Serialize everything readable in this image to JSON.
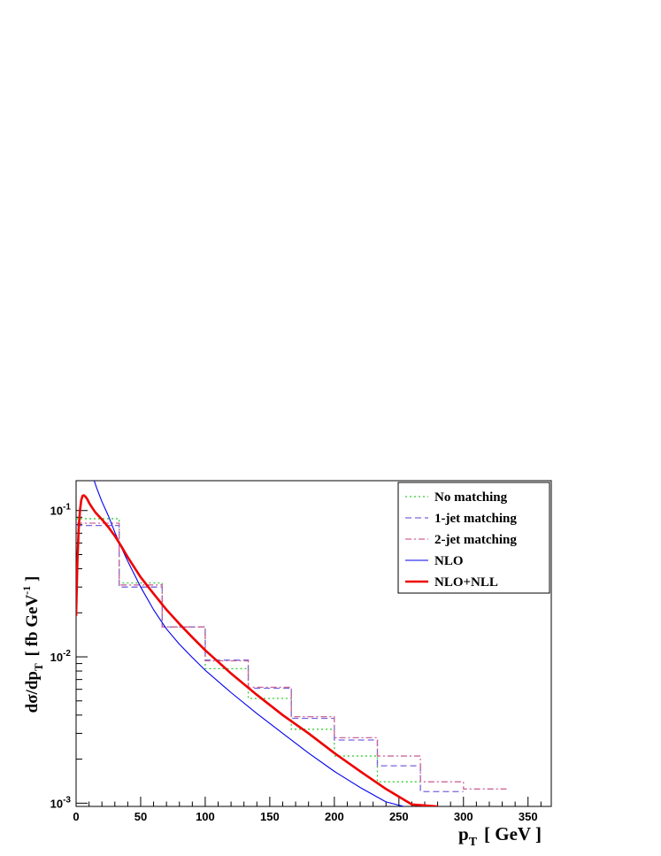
{
  "chart_data": {
    "type": "line",
    "xlabel": {
      "main": "p",
      "sub": "T",
      "unit": "[ GeV ]"
    },
    "ylabel": {
      "pre": "dσ/dp",
      "sub": "T",
      "unit_pre": "[ fb GeV",
      "unit_sup": "-1",
      "unit_post": " ]"
    },
    "xlim": [
      0,
      368
    ],
    "ylim": [
      0.00095,
      0.16
    ],
    "yscale": "log",
    "grid": false,
    "legend_position": "top-right",
    "x_ticks": [
      {
        "value": 0,
        "label": "0"
      },
      {
        "value": 50,
        "label": "50"
      },
      {
        "value": 100,
        "label": "100"
      },
      {
        "value": 150,
        "label": "150"
      },
      {
        "value": 200,
        "label": "200"
      },
      {
        "value": 250,
        "label": "250"
      },
      {
        "value": 300,
        "label": "300"
      },
      {
        "value": 350,
        "label": "350"
      }
    ],
    "y_ticks": [
      {
        "value": 0.1,
        "base": "10",
        "exp": "-1"
      },
      {
        "value": 0.01,
        "base": "10",
        "exp": "-2"
      },
      {
        "value": 0.001,
        "base": "10",
        "exp": "-3"
      }
    ],
    "bin_edges": [
      0,
      33.33,
      66.67,
      100,
      133.33,
      166.67,
      200,
      233.33,
      266.67,
      300,
      333.33
    ],
    "series": [
      {
        "name": "No matching",
        "kind": "hist",
        "color": "#33cc33",
        "dash": "2,3",
        "values": [
          0.088,
          0.032,
          0.016,
          0.0083,
          0.0052,
          0.0032,
          0.0021,
          0.0014,
          null,
          null
        ]
      },
      {
        "name": "1-jet matching",
        "kind": "hist",
        "color": "#7766dd",
        "dash": "7,4",
        "values": [
          0.079,
          0.03,
          0.016,
          0.0095,
          0.0061,
          0.0038,
          0.0027,
          0.0018,
          0.0012,
          null
        ]
      },
      {
        "name": "2-jet matching",
        "kind": "hist",
        "color": "#cc6699",
        "dash": "7,3,2,3",
        "values": [
          0.082,
          0.031,
          0.016,
          0.0094,
          0.0062,
          0.0039,
          0.0028,
          0.0021,
          0.0014,
          0.00125
        ]
      },
      {
        "name": "NLO",
        "kind": "line",
        "color": "#0000ee",
        "width": 1.1,
        "x": [
          14,
          16,
          20,
          25,
          30,
          35,
          40,
          50,
          60,
          70,
          80,
          90,
          100,
          120,
          140,
          160,
          180,
          200,
          220,
          240,
          260,
          266
        ],
        "y": [
          0.16,
          0.142,
          0.115,
          0.092,
          0.071,
          0.056,
          0.045,
          0.03,
          0.021,
          0.0155,
          0.0122,
          0.0099,
          0.0081,
          0.0057,
          0.0041,
          0.003,
          0.0022,
          0.00165,
          0.00128,
          0.00102,
          0.00092,
          0.00095
        ]
      },
      {
        "name": "NLO+NLL",
        "kind": "line",
        "color": "#ee0000",
        "width": 2.6,
        "x": [
          0,
          1,
          2,
          3,
          4,
          5,
          6,
          7,
          8,
          9,
          10,
          12,
          15,
          20,
          25,
          30,
          35,
          40,
          50,
          60,
          70,
          80,
          90,
          100,
          120,
          140,
          160,
          180,
          200,
          220,
          240,
          260,
          280
        ],
        "y": [
          0.019,
          0.045,
          0.075,
          0.1,
          0.118,
          0.126,
          0.127,
          0.125,
          0.122,
          0.118,
          0.113,
          0.106,
          0.097,
          0.087,
          0.077,
          0.067,
          0.057,
          0.048,
          0.035,
          0.027,
          0.021,
          0.0168,
          0.0136,
          0.0111,
          0.0077,
          0.0055,
          0.004,
          0.003,
          0.0022,
          0.00165,
          0.00125,
          0.00098,
          0.00095
        ]
      }
    ]
  }
}
